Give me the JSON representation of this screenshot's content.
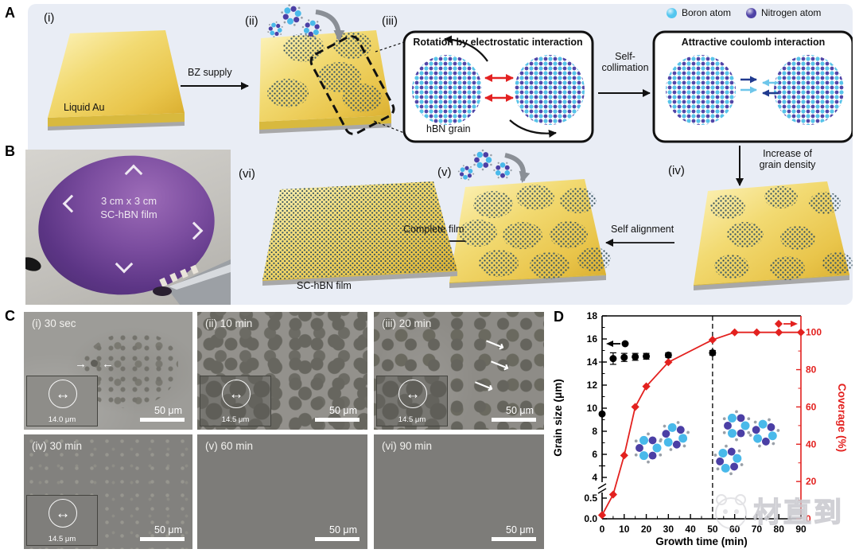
{
  "panels": {
    "a": {
      "label": "A",
      "steps": [
        "(i)",
        "(ii)",
        "(iii)",
        "(iv)",
        "(v)",
        "(vi)"
      ],
      "liquid_au": "Liquid Au",
      "bz_supply": "BZ supply",
      "box1_title": "Rotation by electrostatic interaction",
      "hbn_grain": "hBN grain",
      "self_collimation_line1": "Self-",
      "self_collimation_line2": "collimation",
      "box2_title": "Attractive coulomb interaction",
      "increase_line1": "Increase of",
      "increase_line2": "grain density",
      "self_alignment": "Self alignment",
      "complete_film": "Complete film",
      "film_label": "SC-hBN film",
      "legend": [
        {
          "name": "boron",
          "label": "Boron atom",
          "color": "#53c6ef"
        },
        {
          "name": "nitrogen",
          "label": "Nitrogen atom",
          "color": "#4f43a6"
        }
      ]
    },
    "b": {
      "label": "B",
      "caption_line1": "3 cm x 3 cm",
      "caption_line2": "SC-hBN film"
    },
    "c": {
      "label": "C",
      "images": [
        {
          "label": "(i) 30 sec",
          "inset": "14.0 μm",
          "scale": "50 μm"
        },
        {
          "label": "(ii) 10 min",
          "inset": "14.5 μm",
          "scale": "50 μm"
        },
        {
          "label": "(iii) 20 min",
          "inset": "14.5 μm",
          "scale": "50 μm"
        },
        {
          "label": "(iv) 30 min",
          "inset": "14.5 μm",
          "scale": "50 μm"
        },
        {
          "label": "(v) 60 min",
          "inset": "",
          "scale": "50 μm"
        },
        {
          "label": "(vi) 90 min",
          "inset": "",
          "scale": "50 μm"
        }
      ]
    },
    "d": {
      "label": "D"
    }
  },
  "watermark": {
    "text": "材直到"
  },
  "chart_data": {
    "type": "line",
    "title": "",
    "xlabel": "Growth time (min)",
    "ylabel_left": "Grain size (μm)",
    "ylabel_right": "Coverage (%)",
    "xlim": [
      0,
      90
    ],
    "x_ticks": [
      0,
      10,
      20,
      30,
      40,
      50,
      60,
      70,
      80,
      90
    ],
    "left_axis": {
      "color": "#000000",
      "broken": true,
      "ticks": [
        {
          "v": 18,
          "label": "18"
        },
        {
          "v": 16,
          "label": "16"
        },
        {
          "v": 14,
          "label": "14"
        },
        {
          "v": 12,
          "label": "12"
        },
        {
          "v": 10,
          "label": "10"
        },
        {
          "v": 8,
          "label": "8"
        },
        {
          "v": 6,
          "label": "6"
        },
        {
          "v": 4,
          "label": "4"
        },
        {
          "v": 0.5,
          "label": "0.5"
        },
        {
          "v": 0,
          "label": "0.0"
        }
      ]
    },
    "right_axis": {
      "color": "#e3211f",
      "ticks": [
        0,
        20,
        40,
        60,
        80,
        100
      ]
    },
    "dashed_guide_x": 50,
    "series": [
      {
        "name": "Grain size",
        "axis": "left",
        "marker": "circle",
        "color": "#000000",
        "line": false,
        "points": [
          {
            "x": 0,
            "y": 9.5,
            "err": 4.5
          },
          {
            "x": 5,
            "y": 14.3,
            "err": 0.5
          },
          {
            "x": 10,
            "y": 14.4,
            "err": 0.35
          },
          {
            "x": 15,
            "y": 14.45,
            "err": 0.3
          },
          {
            "x": 20,
            "y": 14.5,
            "err": 0.25
          },
          {
            "x": 30,
            "y": 14.6,
            "err": 0.2
          },
          {
            "x": 50,
            "y": 14.8,
            "err": 0.2
          }
        ]
      },
      {
        "name": "Coverage",
        "axis": "right",
        "marker": "diamond",
        "color": "#e3211f",
        "line": true,
        "points": [
          {
            "x": 0,
            "y": 2
          },
          {
            "x": 5,
            "y": 13
          },
          {
            "x": 10,
            "y": 34
          },
          {
            "x": 15,
            "y": 60
          },
          {
            "x": 20,
            "y": 71
          },
          {
            "x": 30,
            "y": 84
          },
          {
            "x": 50,
            "y": 96
          },
          {
            "x": 60,
            "y": 100
          },
          {
            "x": 70,
            "y": 100
          },
          {
            "x": 80,
            "y": 100
          },
          {
            "x": 90,
            "y": 100
          }
        ]
      }
    ]
  }
}
